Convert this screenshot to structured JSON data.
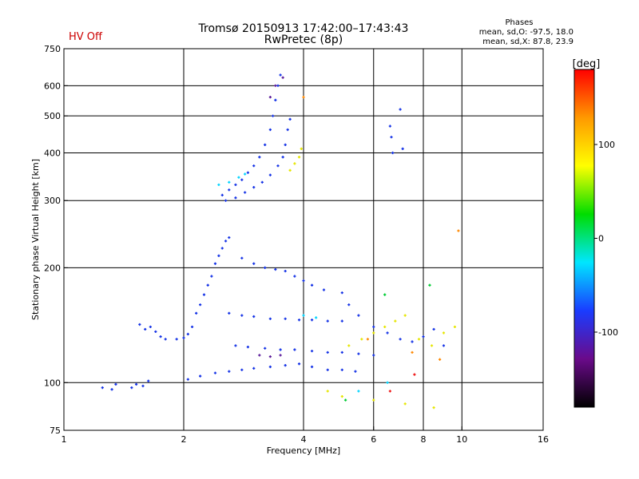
{
  "header": {
    "title": "Tromsø 20150913 17:42:00–17:43:43",
    "subtitle": "RwPretec (8p)",
    "status": "HV Off",
    "status_color": "#cc0000",
    "stats_title": "Phases",
    "stats_line1": "mean, sd,O:  -97.5, 18.0",
    "stats_line2": "mean, sd,X:   87.8, 23.9"
  },
  "chart_data": {
    "type": "scatter",
    "xlabel": "Frequency [MHz]",
    "ylabel": "Stationary phase Virtual Height [km]",
    "x_scale": "log",
    "y_scale": "log",
    "xlim": [
      1,
      16
    ],
    "ylim": [
      75,
      750
    ],
    "x_ticks": [
      1,
      2,
      4,
      6,
      8,
      10,
      16
    ],
    "x_tick_labels": [
      "1",
      "2",
      "4",
      "6",
      "8",
      "10",
      "16"
    ],
    "x_gridlines": [
      2,
      4,
      6,
      8,
      10
    ],
    "y_ticks": [
      75,
      100,
      200,
      300,
      400,
      500,
      600,
      750
    ],
    "y_tick_labels": [
      "75",
      "100",
      "200",
      "300",
      "400",
      "500",
      "600",
      "750"
    ],
    "y_gridlines": [
      100,
      200,
      300,
      400,
      500,
      600
    ],
    "grid": true,
    "colorbar": {
      "label": "[deg]",
      "range": [
        -180,
        180
      ],
      "ticks": [
        100,
        0,
        -100
      ],
      "tick_labels": [
        "100",
        "0",
        "-100"
      ],
      "colormap": [
        "#000000",
        "#6a0a8a",
        "#1a3cff",
        "#00e6ff",
        "#00dd00",
        "#ffff00",
        "#ff9900",
        "#ff0000"
      ]
    },
    "series": [
      {
        "color": "#1533e6",
        "points": [
          [
            1.25,
            97
          ],
          [
            1.32,
            96
          ],
          [
            1.35,
            99
          ],
          [
            1.48,
            97
          ],
          [
            1.52,
            99
          ],
          [
            1.58,
            98
          ],
          [
            1.63,
            101
          ],
          [
            1.55,
            142
          ],
          [
            1.6,
            138
          ],
          [
            1.65,
            140
          ],
          [
            1.7,
            136
          ],
          [
            1.75,
            132
          ],
          [
            1.8,
            130
          ],
          [
            1.92,
            130
          ],
          [
            2.0,
            131
          ],
          [
            2.05,
            134
          ],
          [
            2.1,
            140
          ],
          [
            2.15,
            152
          ],
          [
            2.2,
            160
          ],
          [
            2.25,
            170
          ],
          [
            2.3,
            180
          ],
          [
            2.35,
            190
          ],
          [
            2.4,
            205
          ],
          [
            2.45,
            215
          ],
          [
            2.5,
            225
          ],
          [
            2.55,
            235
          ],
          [
            2.6,
            240
          ],
          [
            2.05,
            102
          ],
          [
            2.2,
            104
          ],
          [
            2.4,
            106
          ],
          [
            2.6,
            107
          ],
          [
            2.8,
            108
          ],
          [
            3.0,
            109
          ],
          [
            3.3,
            110
          ],
          [
            3.6,
            111
          ],
          [
            3.9,
            112
          ],
          [
            4.2,
            110
          ],
          [
            4.6,
            108
          ],
          [
            5.0,
            108
          ],
          [
            5.4,
            107
          ],
          [
            2.6,
            152
          ],
          [
            2.8,
            150
          ],
          [
            3.0,
            149
          ],
          [
            3.3,
            147
          ],
          [
            3.6,
            147
          ],
          [
            3.9,
            146
          ],
          [
            4.2,
            146
          ],
          [
            4.6,
            145
          ],
          [
            5.0,
            145
          ],
          [
            2.7,
            125
          ],
          [
            2.9,
            124
          ],
          [
            3.2,
            123
          ],
          [
            3.5,
            122
          ],
          [
            3.8,
            122
          ],
          [
            4.2,
            121
          ],
          [
            4.6,
            120
          ],
          [
            5.0,
            120
          ],
          [
            5.5,
            119
          ],
          [
            6.0,
            118
          ],
          [
            2.8,
            212
          ],
          [
            3.0,
            205
          ],
          [
            3.2,
            200
          ],
          [
            3.4,
            198
          ],
          [
            3.6,
            196
          ],
          [
            3.8,
            190
          ],
          [
            4.0,
            185
          ],
          [
            4.2,
            180
          ],
          [
            4.5,
            175
          ],
          [
            5.0,
            172
          ],
          [
            5.2,
            160
          ],
          [
            5.5,
            150
          ],
          [
            6.0,
            140
          ],
          [
            6.5,
            135
          ],
          [
            7.0,
            130
          ],
          [
            7.5,
            128
          ],
          [
            8.0,
            132
          ],
          [
            8.5,
            138
          ],
          [
            9.0,
            125
          ],
          [
            2.5,
            310
          ],
          [
            2.6,
            320
          ],
          [
            2.7,
            330
          ],
          [
            2.8,
            340
          ],
          [
            2.9,
            355
          ],
          [
            3.0,
            370
          ],
          [
            3.1,
            390
          ],
          [
            3.2,
            420
          ],
          [
            3.3,
            460
          ],
          [
            3.35,
            500
          ],
          [
            3.4,
            550
          ],
          [
            3.45,
            600
          ],
          [
            3.5,
            640
          ],
          [
            2.55,
            300
          ],
          [
            2.7,
            305
          ],
          [
            2.85,
            315
          ],
          [
            3.0,
            325
          ],
          [
            3.15,
            335
          ],
          [
            3.3,
            350
          ],
          [
            3.45,
            370
          ],
          [
            3.55,
            390
          ],
          [
            3.6,
            420
          ],
          [
            3.65,
            460
          ],
          [
            3.7,
            490
          ],
          [
            6.6,
            470
          ],
          [
            6.65,
            440
          ],
          [
            6.7,
            400
          ],
          [
            7.0,
            520
          ],
          [
            7.1,
            410
          ]
        ]
      },
      {
        "color": "#e6e600",
        "points": [
          [
            3.7,
            360
          ],
          [
            3.8,
            375
          ],
          [
            3.9,
            390
          ],
          [
            3.95,
            410
          ],
          [
            5.2,
            125
          ],
          [
            5.6,
            130
          ],
          [
            6.0,
            135
          ],
          [
            6.4,
            140
          ],
          [
            6.8,
            145
          ],
          [
            7.2,
            150
          ],
          [
            7.8,
            130
          ],
          [
            8.4,
            125
          ],
          [
            9.0,
            135
          ],
          [
            9.6,
            140
          ],
          [
            4.6,
            95
          ],
          [
            5.0,
            92
          ],
          [
            6.0,
            90
          ],
          [
            7.2,
            88
          ],
          [
            8.5,
            86
          ]
        ]
      },
      {
        "color": "#00d4ff",
        "points": [
          [
            2.45,
            330
          ],
          [
            2.6,
            335
          ],
          [
            2.75,
            345
          ],
          [
            2.85,
            352
          ],
          [
            4.0,
            150
          ],
          [
            4.3,
            148
          ],
          [
            5.5,
            95
          ],
          [
            6.5,
            100
          ]
        ]
      },
      {
        "color": "#5a1a9a",
        "points": [
          [
            3.1,
            118
          ],
          [
            3.3,
            117
          ],
          [
            3.5,
            118
          ],
          [
            3.3,
            560
          ],
          [
            3.4,
            600
          ],
          [
            3.55,
            630
          ]
        ]
      },
      {
        "color": "#ff8800",
        "points": [
          [
            4.0,
            560
          ],
          [
            7.5,
            120
          ],
          [
            8.8,
            115
          ],
          [
            9.8,
            250
          ],
          [
            5.8,
            130
          ]
        ]
      },
      {
        "color": "#00cc33",
        "points": [
          [
            5.1,
            90
          ],
          [
            6.4,
            170
          ],
          [
            8.3,
            180
          ]
        ]
      },
      {
        "color": "#ee1111",
        "points": [
          [
            6.6,
            95
          ],
          [
            7.6,
            105
          ]
        ]
      }
    ]
  }
}
